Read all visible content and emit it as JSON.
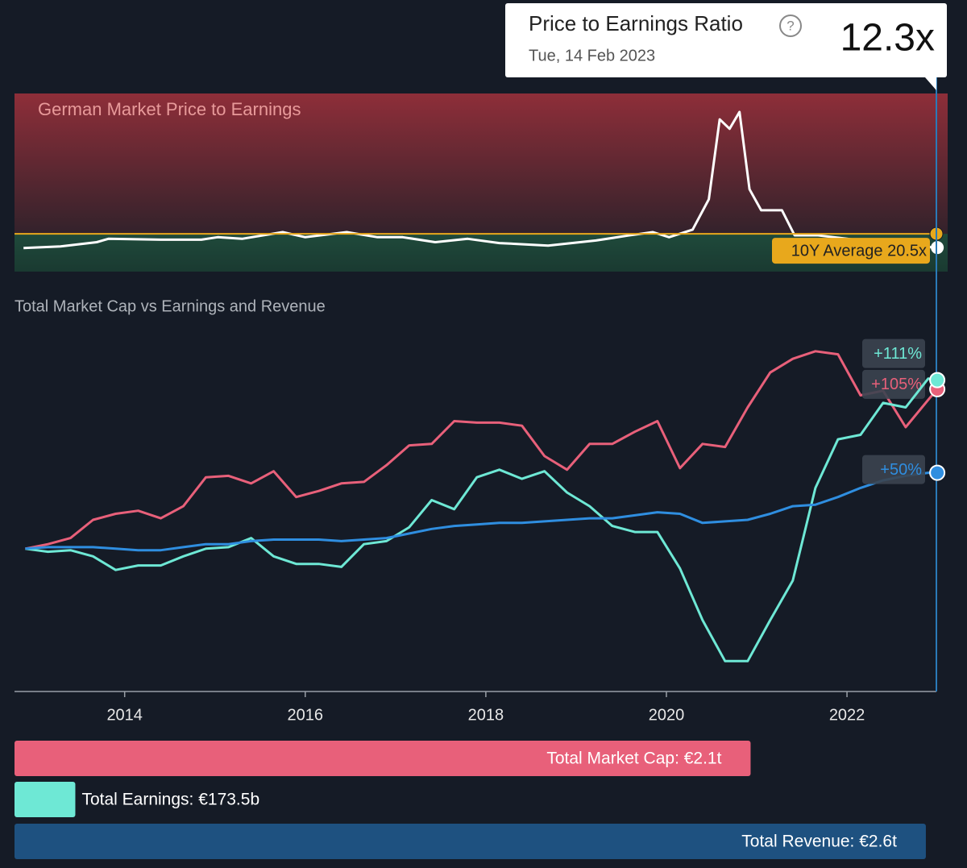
{
  "tooltip": {
    "title": "Price to Earnings Ratio",
    "date": "Tue, 14 Feb 2023",
    "value": "12.3x"
  },
  "chart_data": [
    {
      "type": "line",
      "title": "German Market Price to Earnings",
      "x": [
        2012.88,
        2013.29,
        2013.69,
        2013.82,
        2014.4,
        2014.85,
        2015.03,
        2015.3,
        2015.75,
        2016.0,
        2016.46,
        2016.8,
        2017.08,
        2017.44,
        2017.8,
        2018.15,
        2018.69,
        2019.22,
        2019.58,
        2019.85,
        2020.03,
        2020.29,
        2020.47,
        2020.59,
        2020.7,
        2020.81,
        2020.92,
        2021.05,
        2021.28,
        2021.42,
        2021.68,
        2022.0,
        2022.5,
        2023.0
      ],
      "series": [
        {
          "color": "#ffffff",
          "values": [
            12,
            13,
            15.5,
            17.5,
            17,
            17,
            18.5,
            17.5,
            21.5,
            18.5,
            21.5,
            18.5,
            18.5,
            15.5,
            17.5,
            15,
            13.5,
            16.5,
            19.5,
            21.5,
            18.5,
            23,
            41,
            88.6,
            83,
            93,
            47,
            34.5,
            34.5,
            19.6,
            19.6,
            17.5,
            14,
            12.3
          ]
        }
      ],
      "average": {
        "value": 20.5,
        "label": "10Y Average 20.5x",
        "color": "#e8a81c"
      },
      "xlim": [
        2012.78,
        2022.99
      ],
      "ylim": [
        -2,
        104
      ]
    },
    {
      "type": "line",
      "title": "Total Market Cap vs Earnings and Revenue",
      "x": [
        2012.9,
        2013.15,
        2013.4,
        2013.65,
        2013.9,
        2014.15,
        2014.4,
        2014.65,
        2014.9,
        2015.15,
        2015.4,
        2015.65,
        2015.9,
        2016.15,
        2016.4,
        2016.65,
        2016.9,
        2017.15,
        2017.4,
        2017.65,
        2017.9,
        2018.15,
        2018.4,
        2018.65,
        2018.9,
        2019.15,
        2019.4,
        2019.65,
        2019.9,
        2020.15,
        2020.4,
        2020.65,
        2020.9,
        2021.15,
        2021.4,
        2021.65,
        2021.9,
        2022.15,
        2022.4,
        2022.65,
        2022.9,
        2023.0
      ],
      "series": [
        {
          "color": "#e8607a",
          "end_label": "+105%",
          "values": [
            0,
            3,
            7,
            19,
            23,
            25,
            20,
            28,
            47,
            48,
            43,
            51,
            34,
            38,
            43,
            44,
            55,
            68,
            69,
            84,
            83,
            83,
            81,
            61,
            52,
            69,
            69,
            77,
            84,
            53,
            69,
            67,
            93,
            116,
            125,
            130,
            128,
            101,
            104,
            80,
            98,
            105
          ]
        },
        {
          "color": "#6ee8d5",
          "end_label": "+111%",
          "values": [
            0,
            -2,
            -1,
            -5,
            -14,
            -11,
            -11,
            -5,
            0,
            1,
            7,
            -5,
            -10,
            -10,
            -12,
            3,
            5,
            14,
            32,
            26,
            47,
            52,
            46,
            51,
            37,
            28,
            15,
            11,
            11,
            -13,
            -47,
            -74,
            -74,
            -47,
            -21,
            40,
            72,
            75,
            96,
            93,
            112,
            111
          ]
        },
        {
          "color": "#2f8ee0",
          "end_label": "+50%",
          "values": [
            0,
            1,
            1,
            1,
            0,
            -1,
            -1,
            1,
            3,
            3,
            5,
            6,
            6,
            6,
            5,
            6,
            7,
            10,
            13,
            15,
            16,
            17,
            17,
            18,
            19,
            20,
            20,
            22,
            24,
            23,
            17,
            18,
            19,
            23,
            28,
            29,
            34,
            40,
            45,
            48,
            50,
            50
          ]
        }
      ],
      "xlim": [
        2012.78,
        2022.99
      ],
      "ylim": [
        -94,
        149
      ],
      "xticks": [
        2014,
        2016,
        2018,
        2020,
        2022
      ]
    },
    {
      "type": "bar",
      "values": [
        2100000000000,
        173500000000,
        2600000000000
      ],
      "value_labels": [
        "Total Market Cap: €2.1t",
        "Total Earnings: €173.5b",
        "Total Revenue: €2.6t"
      ],
      "colors": [
        "#e8607a",
        "#6ee8d5",
        "#1e5180"
      ],
      "xlim": [
        0,
        2630000000000
      ]
    }
  ]
}
